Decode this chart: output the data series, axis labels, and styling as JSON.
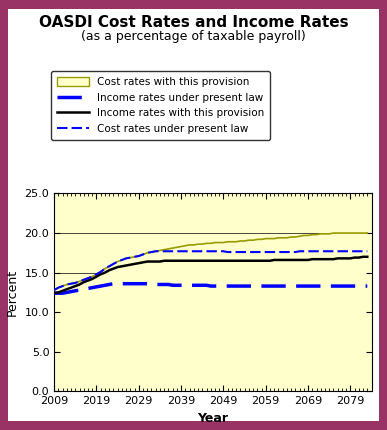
{
  "title": "OASDI Cost Rates and Income Rates",
  "subtitle": "(as a percentage of taxable payroll)",
  "xlabel": "Year",
  "ylabel": "Percent",
  "xlim": [
    2009,
    2084
  ],
  "ylim": [
    0.0,
    25.0
  ],
  "yticks": [
    0.0,
    5.0,
    10.0,
    15.0,
    20.0,
    25.0
  ],
  "xticks": [
    2009,
    2019,
    2029,
    2039,
    2049,
    2059,
    2069,
    2079
  ],
  "outer_bg_color": "#993366",
  "inner_bg_color": "#ffffff",
  "plot_bg_color": "#FFFFCC",
  "years": [
    2009,
    2010,
    2011,
    2012,
    2013,
    2014,
    2015,
    2016,
    2017,
    2018,
    2019,
    2020,
    2021,
    2022,
    2023,
    2024,
    2025,
    2026,
    2027,
    2028,
    2029,
    2030,
    2031,
    2032,
    2033,
    2034,
    2035,
    2036,
    2037,
    2038,
    2039,
    2040,
    2041,
    2042,
    2043,
    2044,
    2045,
    2046,
    2047,
    2048,
    2049,
    2050,
    2051,
    2052,
    2053,
    2054,
    2055,
    2056,
    2057,
    2058,
    2059,
    2060,
    2061,
    2062,
    2063,
    2064,
    2065,
    2066,
    2067,
    2068,
    2069,
    2070,
    2071,
    2072,
    2073,
    2074,
    2075,
    2076,
    2077,
    2078,
    2079,
    2080,
    2081,
    2082,
    2083
  ],
  "cost_rates_provision": [
    12.8,
    13.1,
    13.3,
    13.5,
    13.6,
    13.7,
    13.9,
    14.1,
    14.3,
    14.5,
    14.8,
    15.1,
    15.5,
    15.8,
    16.1,
    16.4,
    16.6,
    16.8,
    16.9,
    17.0,
    17.1,
    17.3,
    17.5,
    17.6,
    17.7,
    17.8,
    17.9,
    18.0,
    18.1,
    18.2,
    18.3,
    18.4,
    18.5,
    18.5,
    18.6,
    18.6,
    18.7,
    18.7,
    18.8,
    18.8,
    18.8,
    18.9,
    18.9,
    18.9,
    19.0,
    19.0,
    19.1,
    19.1,
    19.2,
    19.2,
    19.3,
    19.3,
    19.3,
    19.4,
    19.4,
    19.4,
    19.5,
    19.5,
    19.6,
    19.7,
    19.7,
    19.8,
    19.8,
    19.9,
    19.9,
    19.9,
    20.0,
    20.0,
    20.0,
    20.0,
    20.0,
    20.0,
    20.0,
    20.0,
    20.0
  ],
  "income_rates_present_law": [
    12.4,
    12.4,
    12.4,
    12.5,
    12.6,
    12.7,
    12.8,
    12.9,
    13.0,
    13.1,
    13.2,
    13.3,
    13.4,
    13.5,
    13.6,
    13.6,
    13.6,
    13.6,
    13.6,
    13.6,
    13.6,
    13.6,
    13.6,
    13.6,
    13.5,
    13.5,
    13.5,
    13.5,
    13.4,
    13.4,
    13.4,
    13.4,
    13.4,
    13.4,
    13.4,
    13.4,
    13.4,
    13.3,
    13.3,
    13.3,
    13.3,
    13.3,
    13.3,
    13.3,
    13.3,
    13.3,
    13.3,
    13.3,
    13.3,
    13.3,
    13.3,
    13.3,
    13.3,
    13.3,
    13.3,
    13.3,
    13.3,
    13.3,
    13.3,
    13.3,
    13.3,
    13.3,
    13.3,
    13.3,
    13.3,
    13.3,
    13.3,
    13.3,
    13.3,
    13.3,
    13.3,
    13.3,
    13.3,
    13.3,
    13.3
  ],
  "income_rates_provision": [
    12.4,
    12.5,
    12.7,
    12.9,
    13.1,
    13.3,
    13.5,
    13.8,
    14.0,
    14.2,
    14.5,
    14.8,
    15.0,
    15.3,
    15.5,
    15.7,
    15.8,
    15.9,
    16.0,
    16.1,
    16.2,
    16.3,
    16.4,
    16.4,
    16.4,
    16.4,
    16.5,
    16.5,
    16.5,
    16.5,
    16.5,
    16.5,
    16.5,
    16.5,
    16.5,
    16.5,
    16.5,
    16.5,
    16.5,
    16.5,
    16.5,
    16.5,
    16.5,
    16.5,
    16.5,
    16.5,
    16.5,
    16.5,
    16.5,
    16.5,
    16.5,
    16.5,
    16.6,
    16.6,
    16.6,
    16.6,
    16.6,
    16.6,
    16.6,
    16.6,
    16.6,
    16.7,
    16.7,
    16.7,
    16.7,
    16.7,
    16.7,
    16.8,
    16.8,
    16.8,
    16.8,
    16.9,
    16.9,
    17.0,
    17.0
  ],
  "cost_rates_present_law": [
    12.8,
    13.1,
    13.3,
    13.5,
    13.6,
    13.7,
    13.9,
    14.1,
    14.3,
    14.5,
    14.8,
    15.1,
    15.5,
    15.8,
    16.1,
    16.4,
    16.6,
    16.8,
    16.9,
    17.0,
    17.1,
    17.3,
    17.5,
    17.6,
    17.7,
    17.7,
    17.7,
    17.7,
    17.7,
    17.7,
    17.7,
    17.7,
    17.7,
    17.7,
    17.7,
    17.7,
    17.7,
    17.7,
    17.7,
    17.7,
    17.7,
    17.6,
    17.6,
    17.6,
    17.6,
    17.6,
    17.6,
    17.6,
    17.6,
    17.6,
    17.6,
    17.6,
    17.6,
    17.6,
    17.6,
    17.6,
    17.6,
    17.6,
    17.7,
    17.7,
    17.7,
    17.7,
    17.7,
    17.7,
    17.7,
    17.7,
    17.7,
    17.7,
    17.7,
    17.7,
    17.7,
    17.7,
    17.7,
    17.7,
    17.7
  ],
  "legend_entries": [
    "Cost rates with this provision",
    "Income rates under present law",
    "Income rates with this provision",
    "Cost rates under present law"
  ],
  "cost_provision_edge_color": "#999900",
  "income_present_law_color": "#0000FF",
  "income_provision_color": "#000000",
  "cost_present_law_color": "#0000FF",
  "title_fontsize": 11,
  "subtitle_fontsize": 9,
  "axis_fontsize": 8,
  "label_fontsize": 9
}
